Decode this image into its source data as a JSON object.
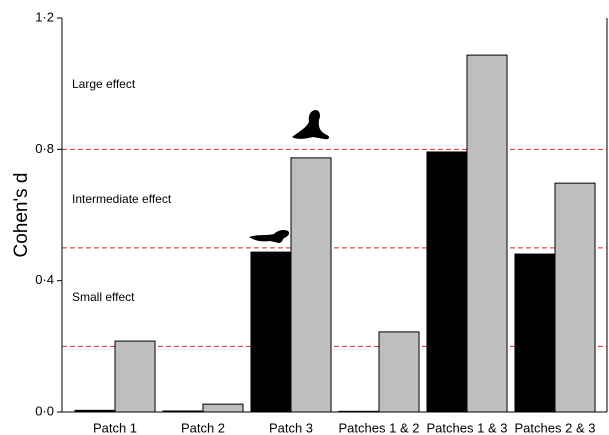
{
  "chart_data": {
    "type": "bar",
    "y_label": "Cohen's d",
    "categories": [
      "Patch 1",
      "Patch 2",
      "Patch 3",
      "Patches 1 & 2",
      "Patches 1 & 3",
      "Patches 2 & 3"
    ],
    "series": [
      {
        "color": "#000000",
        "values": [
          0.005,
          0.003,
          0.487,
          0.002,
          0.792,
          0.481
        ]
      },
      {
        "color": "#bebebe",
        "values": [
          0.216,
          0.024,
          0.774,
          0.244,
          1.087,
          0.697
        ]
      }
    ],
    "ylim": [
      0,
      1.2
    ],
    "yticks": [
      {
        "value": 0,
        "label": "0·0"
      },
      {
        "value": 0.4,
        "label": "0·4"
      },
      {
        "value": 0.8,
        "label": "0·8"
      },
      {
        "value": 1.2,
        "label": "1·2"
      }
    ],
    "reference_lines": {
      "color": "#d62728",
      "values": [
        0.2,
        0.5,
        0.8
      ]
    },
    "annotations": [
      "Large effect",
      "Intermediate effect",
      "Small effect"
    ]
  }
}
